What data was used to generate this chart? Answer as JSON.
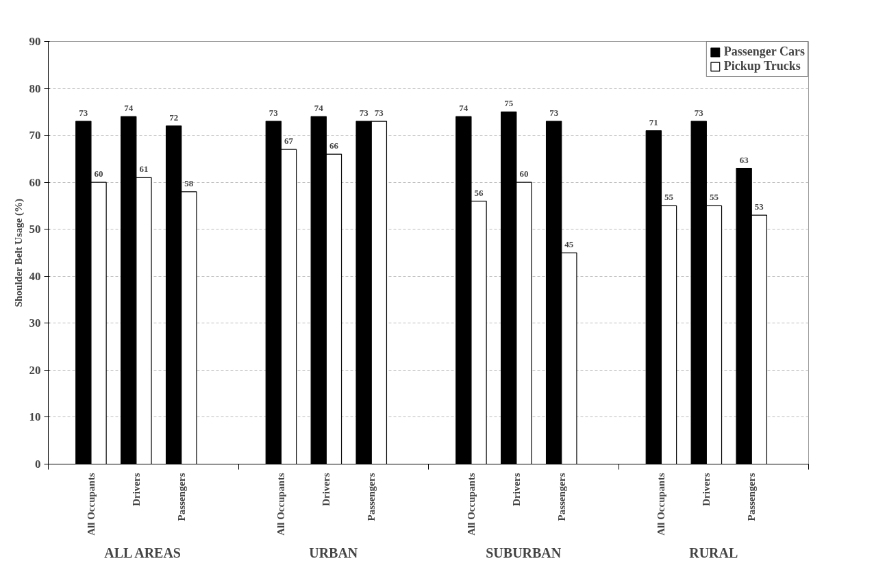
{
  "chart_data": {
    "type": "bar",
    "ylabel": "Shoulder Belt Usage (%)",
    "categories": [
      "All Occupants",
      "Drivers",
      "Passengers",
      "All Occupants",
      "Drivers",
      "Passengers",
      "All Occupants",
      "Drivers",
      "Passengers",
      "All Occupants",
      "Drivers",
      "Passengers"
    ],
    "series": [
      {
        "name": "Passenger Cars",
        "color": "#000000",
        "values": [
          73,
          74,
          72,
          73,
          74,
          73,
          74,
          75,
          73,
          71,
          73,
          63
        ]
      },
      {
        "name": "Pickup Trucks",
        "color": "#ffffff",
        "values": [
          60,
          61,
          58,
          67,
          66,
          73,
          56,
          60,
          45,
          55,
          55,
          53
        ]
      }
    ],
    "annotations": [
      "ALL AREAS",
      "URBAN",
      "SUBURBAN",
      "RURAL"
    ],
    "ylim": [
      0,
      90
    ],
    "yticks": [
      0,
      10,
      20,
      30,
      40,
      50,
      60,
      70,
      80,
      90
    ],
    "grid": "y",
    "legend": "top right",
    "data_labels": true
  }
}
